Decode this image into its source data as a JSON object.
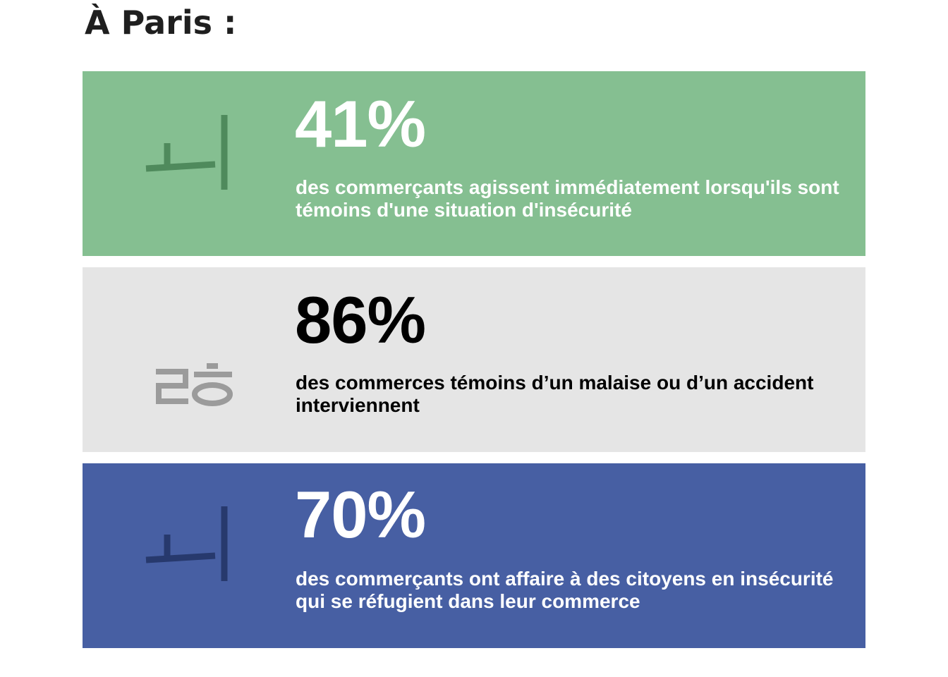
{
  "page": {
    "title": "À Paris :"
  },
  "cards": [
    {
      "value": "41%",
      "description": "des commerçants agissent immédiatement lorsqu'ils sont témoins d'une situation d'insécurité",
      "background": "#85bf91",
      "text_color": "#ffffff",
      "icon": "korean-glyph-icon",
      "icon_color": "#4f8a5c"
    },
    {
      "value": "86%",
      "description": "des commerces témoins d’un malaise ou d’un accident interviennent",
      "background": "#e5e5e5",
      "text_color": "#000000",
      "icon": "korean-glyph-icon",
      "icon_color": "#9b9b9b"
    },
    {
      "value": "70%",
      "description": "des commerçants ont affaire à des citoyens en insécurité qui se réfugient dans leur commerce",
      "background": "#475fa3",
      "text_color": "#ffffff",
      "icon": "korean-glyph-icon",
      "icon_color": "#27396d"
    }
  ]
}
